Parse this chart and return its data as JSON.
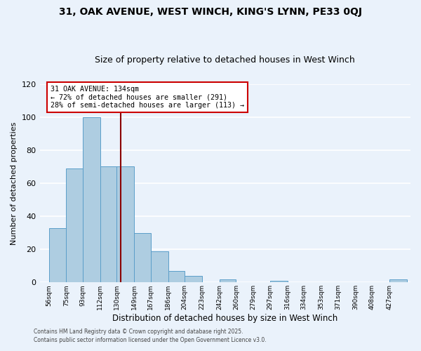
{
  "title": "31, OAK AVENUE, WEST WINCH, KING'S LYNN, PE33 0QJ",
  "subtitle": "Size of property relative to detached houses in West Winch",
  "xlabel": "Distribution of detached houses by size in West Winch",
  "ylabel": "Number of detached properties",
  "bar_labels": [
    "56sqm",
    "75sqm",
    "93sqm",
    "112sqm",
    "130sqm",
    "149sqm",
    "167sqm",
    "186sqm",
    "204sqm",
    "223sqm",
    "242sqm",
    "260sqm",
    "279sqm",
    "297sqm",
    "316sqm",
    "334sqm",
    "353sqm",
    "371sqm",
    "390sqm",
    "408sqm",
    "427sqm"
  ],
  "bar_values": [
    33,
    69,
    100,
    70,
    70,
    30,
    19,
    7,
    4,
    0,
    2,
    0,
    0,
    1,
    0,
    0,
    0,
    0,
    0,
    0,
    2
  ],
  "bar_color": "#aecde1",
  "bar_edge_color": "#5b9ec9",
  "ylim": [
    0,
    120
  ],
  "yticks": [
    0,
    20,
    40,
    60,
    80,
    100,
    120
  ],
  "vline_color": "#8b0000",
  "annotation_title": "31 OAK AVENUE: 134sqm",
  "annotation_line1": "← 72% of detached houses are smaller (291)",
  "annotation_line2": "28% of semi-detached houses are larger (113) →",
  "annotation_box_color": "#ffffff",
  "annotation_box_edge": "#cc0000",
  "footer1": "Contains HM Land Registry data © Crown copyright and database right 2025.",
  "footer2": "Contains public sector information licensed under the Open Government Licence v3.0.",
  "bg_color": "#eaf2fb",
  "grid_color": "#ffffff",
  "title_fontsize": 10,
  "subtitle_fontsize": 9
}
